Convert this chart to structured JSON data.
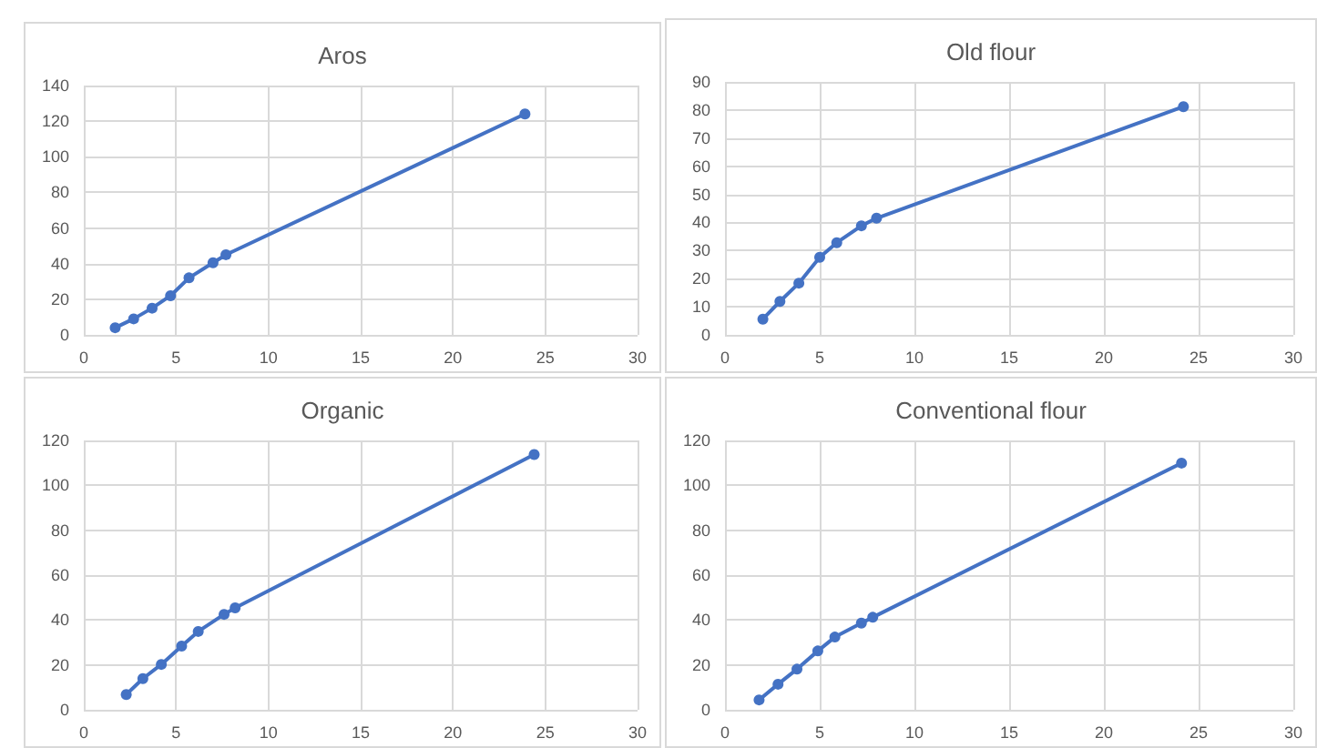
{
  "chart_data": [
    {
      "type": "line",
      "title": "Aros",
      "x": [
        1.7,
        2.7,
        3.7,
        4.7,
        5.7,
        7.0,
        7.7,
        23.9
      ],
      "series": [
        {
          "color": "#4472c4",
          "values": [
            4,
            9,
            15,
            22,
            32,
            40.5,
            45,
            124
          ]
        }
      ],
      "xlim": [
        0,
        30
      ],
      "xticks": [
        0,
        5,
        10,
        15,
        20,
        25,
        30
      ],
      "ylim": [
        0,
        140
      ],
      "yticks": [
        0,
        20,
        40,
        60,
        80,
        100,
        120,
        140
      ],
      "grid": true,
      "marker": "circle",
      "line_style": "solid"
    },
    {
      "type": "line",
      "title": "Old flour",
      "x": [
        2.0,
        2.9,
        3.9,
        5.0,
        5.9,
        7.2,
        8.0,
        24.2
      ],
      "series": [
        {
          "color": "#4472c4",
          "values": [
            5.6,
            11.9,
            18.4,
            27.6,
            32.8,
            38.8,
            41.5,
            81.2
          ]
        }
      ],
      "xlim": [
        0,
        30
      ],
      "xticks": [
        0,
        5,
        10,
        15,
        20,
        25,
        30
      ],
      "ylim": [
        0,
        90
      ],
      "yticks": [
        0,
        10,
        20,
        30,
        40,
        50,
        60,
        70,
        80,
        90
      ],
      "grid": true,
      "marker": "circle",
      "line_style": "solid"
    },
    {
      "type": "line",
      "title": "Organic",
      "x": [
        2.3,
        3.2,
        4.2,
        5.3,
        6.2,
        7.6,
        8.2,
        24.4
      ],
      "series": [
        {
          "color": "#4472c4",
          "values": [
            6.8,
            13.9,
            20.2,
            28.4,
            34.9,
            42.5,
            45.4,
            113.7
          ]
        }
      ],
      "xlim": [
        0,
        30
      ],
      "xticks": [
        0,
        5,
        10,
        15,
        20,
        25,
        30
      ],
      "ylim": [
        0,
        120
      ],
      "yticks": [
        0,
        20,
        40,
        60,
        80,
        100,
        120
      ],
      "grid": true,
      "marker": "circle",
      "line_style": "solid"
    },
    {
      "type": "line",
      "title": "Conventional flour",
      "x": [
        1.8,
        2.8,
        3.8,
        4.9,
        5.8,
        7.2,
        7.8,
        24.1
      ],
      "series": [
        {
          "color": "#4472c4",
          "values": [
            4.4,
            11.4,
            18.1,
            26.2,
            32.4,
            38.6,
            41.2,
            109.9
          ]
        }
      ],
      "xlim": [
        0,
        30
      ],
      "xticks": [
        0,
        5,
        10,
        15,
        20,
        25,
        30
      ],
      "ylim": [
        0,
        120
      ],
      "yticks": [
        0,
        20,
        40,
        60,
        80,
        100,
        120
      ],
      "grid": true,
      "marker": "circle",
      "line_style": "solid"
    }
  ]
}
